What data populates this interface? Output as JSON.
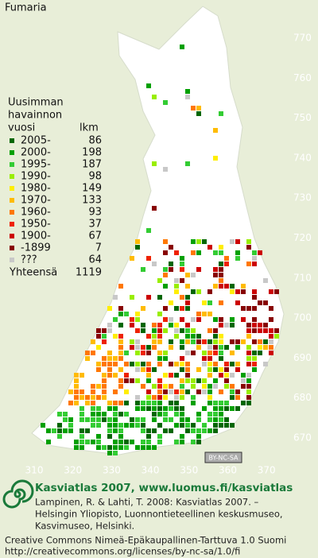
{
  "title": "Fumaria",
  "legend": {
    "heading": [
      "Uusimman",
      "havainnon"
    ],
    "column_labels": [
      "vuosi",
      "lkm"
    ],
    "rows": [
      {
        "label": "2005-",
        "count": 86,
        "color": "#006600"
      },
      {
        "label": "2000-",
        "count": 198,
        "color": "#00a000"
      },
      {
        "label": "1995-",
        "count": 187,
        "color": "#33cc33"
      },
      {
        "label": "1990-",
        "count": 98,
        "color": "#99ee00"
      },
      {
        "label": "1980-",
        "count": 149,
        "color": "#ffee00"
      },
      {
        "label": "1970-",
        "count": 133,
        "color": "#ffbb00"
      },
      {
        "label": "1960-",
        "count": 93,
        "color": "#ff7700"
      },
      {
        "label": "1950-",
        "count": 37,
        "color": "#ee2200"
      },
      {
        "label": "1900-",
        "count": 67,
        "color": "#cc0000"
      },
      {
        "label": "-1899",
        "count": 7,
        "color": "#880000"
      },
      {
        "label": "???",
        "count": 64,
        "color": "#c8c8c8"
      }
    ],
    "total_label": "Yhteensä",
    "total": 1119
  },
  "grid_ticks": {
    "north": [
      770,
      760,
      750,
      740,
      730,
      720,
      710,
      700,
      690,
      680,
      670
    ],
    "east": [
      310,
      320,
      330,
      340,
      350,
      360,
      370
    ]
  },
  "license_badge": "BY-NC-SA",
  "footer": {
    "headline": "Kasviatlas 2007, www.luomus.fi/kasviatlas",
    "citation": [
      "Lampinen, R. & Lahti, T. 2008: Kasviatlas 2007. –",
      "Helsingin Yliopisto, Luonnontieteellinen keskusmuseo,",
      "Kasvimuseo, Helsinki."
    ],
    "license": [
      "Creative Commons Nimeä-Epäkaupallinen-Tarttuva 1.0 Suomi",
      "http://creativecommons.org/licenses/by-nc-sa/1.0/fi"
    ]
  }
}
